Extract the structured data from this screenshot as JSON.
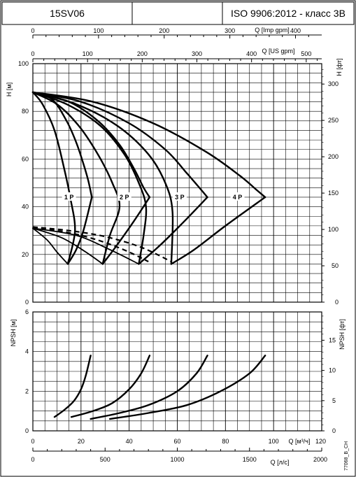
{
  "header": {
    "model": "15SV06",
    "blank": "",
    "standard": "ISO 9906:2012 - класс 3B"
  },
  "side_code": "77068_B_CH",
  "chart_data": [
    {
      "type": "line",
      "name": "head",
      "x_units": "Q [м³/ч]",
      "xlim": [
        0,
        120
      ],
      "ylabel_left": "H [м]",
      "ylim": [
        0,
        100
      ],
      "yticks_left": [
        0,
        20,
        40,
        60,
        80,
        100
      ],
      "ylabel_right": "H [фт]",
      "yticks_right": [
        0,
        50,
        100,
        150,
        200,
        250,
        300
      ],
      "top_axis_imp": {
        "label": "Q [Imp gpm]",
        "ticks": [
          0,
          100,
          200,
          300,
          400
        ]
      },
      "top_axis_us": {
        "label": "Q [US gpm]",
        "ticks": [
          0,
          100,
          200,
          300,
          400,
          500
        ]
      },
      "grid": true,
      "series": [
        {
          "name": "1 P",
          "label_at": [
            15,
            44
          ],
          "head": [
            [
              0,
              88
            ],
            [
              8,
              85
            ],
            [
              14,
              76
            ],
            [
              18,
              67
            ],
            [
              21,
              58
            ],
            [
              23,
              51
            ],
            [
              24.5,
              44
            ]
          ],
          "left_boundary": [
            [
              0,
              88
            ],
            [
              4,
              83
            ],
            [
              9,
              72
            ],
            [
              13,
              56
            ],
            [
              15.5,
              44
            ],
            [
              17.5,
              30
            ],
            [
              14.5,
              16
            ]
          ],
          "right_boundary": [
            [
              14.5,
              16
            ],
            [
              18,
              22
            ],
            [
              21,
              30
            ],
            [
              24.5,
              44
            ]
          ],
          "npsh": [
            [
              9,
              0.7
            ],
            [
              13,
              1.05
            ],
            [
              17,
              1.5
            ],
            [
              20,
              2.1
            ],
            [
              22,
              2.8
            ],
            [
              24,
              3.8
            ]
          ]
        },
        {
          "name": "2 P",
          "label_at": [
            38,
            44
          ],
          "head": [
            [
              0,
              88
            ],
            [
              15,
              84
            ],
            [
              27,
              76
            ],
            [
              36,
              66
            ],
            [
              42,
              56
            ],
            [
              46,
              48
            ],
            [
              48.5,
              44
            ]
          ],
          "left_boundary": [
            [
              0,
              88
            ],
            [
              10,
              83
            ],
            [
              19,
              74
            ],
            [
              27,
              62
            ],
            [
              33,
              50
            ],
            [
              36,
              40
            ],
            [
              32,
              28
            ],
            [
              29,
              16
            ]
          ],
          "right_boundary": [
            [
              29,
              16
            ],
            [
              35,
              24
            ],
            [
              42,
              34
            ],
            [
              48.5,
              44
            ]
          ],
          "npsh": [
            [
              16,
              0.7
            ],
            [
              25,
              1.0
            ],
            [
              33,
              1.4
            ],
            [
              40,
              2.1
            ],
            [
              45,
              2.9
            ],
            [
              48.5,
              3.8
            ]
          ]
        },
        {
          "name": "3 P",
          "label_at": [
            61,
            44
          ],
          "head": [
            [
              0,
              88
            ],
            [
              20,
              84
            ],
            [
              40,
              75
            ],
            [
              55,
              64
            ],
            [
              64,
              54
            ],
            [
              70,
              47
            ],
            [
              72.5,
              44
            ]
          ],
          "left_boundary": [
            [
              0,
              88
            ],
            [
              14,
              83
            ],
            [
              28,
              74
            ],
            [
              38,
              62
            ],
            [
              44,
              50
            ],
            [
              47,
              40
            ],
            [
              46,
              28
            ],
            [
              44,
              16
            ]
          ],
          "right_boundary": [
            [
              44,
              16
            ],
            [
              53,
              24
            ],
            [
              63,
              34
            ],
            [
              72.5,
              44
            ]
          ],
          "npsh": [
            [
              24,
              0.6
            ],
            [
              36,
              0.9
            ],
            [
              48,
              1.3
            ],
            [
              60,
              2.0
            ],
            [
              68,
              2.9
            ],
            [
              72.5,
              3.8
            ]
          ]
        },
        {
          "name": "4 P",
          "label_at": [
            85,
            44
          ],
          "head": [
            [
              0,
              88
            ],
            [
              25,
              84
            ],
            [
              50,
              75
            ],
            [
              72,
              63
            ],
            [
              86,
              53
            ],
            [
              93,
              47
            ],
            [
              96.5,
              44
            ]
          ],
          "left_boundary": [
            [
              0,
              88
            ],
            [
              18,
              83
            ],
            [
              35,
              74
            ],
            [
              48,
              62
            ],
            [
              55,
              50
            ],
            [
              58,
              38
            ],
            [
              57.5,
              16
            ]
          ],
          "right_boundary": [
            [
              57.5,
              16
            ],
            [
              67,
              22
            ],
            [
              80,
              32
            ],
            [
              96.5,
              44
            ]
          ],
          "npsh": [
            [
              32,
              0.6
            ],
            [
              48,
              0.9
            ],
            [
              64,
              1.3
            ],
            [
              78,
              2.0
            ],
            [
              90,
              2.9
            ],
            [
              96.5,
              3.8
            ]
          ]
        }
      ],
      "dashed_lines": [
        [
          [
            0,
            31.5
          ],
          [
            15,
            30
          ],
          [
            30,
            27.5
          ],
          [
            45,
            23
          ],
          [
            57.5,
            17
          ]
        ],
        [
          [
            0,
            31.5
          ],
          [
            10,
            30
          ],
          [
            20,
            28
          ],
          [
            30,
            25
          ],
          [
            40,
            21
          ],
          [
            48,
            17
          ]
        ]
      ],
      "low_flow_curves": [
        [
          [
            0,
            31
          ],
          [
            6,
            26
          ],
          [
            10,
            21
          ],
          [
            14.5,
            16
          ]
        ],
        [
          [
            0,
            31
          ],
          [
            12,
            27
          ],
          [
            22,
            21
          ],
          [
            29,
            16
          ]
        ],
        [
          [
            0,
            31
          ],
          [
            18,
            28
          ],
          [
            32,
            22
          ],
          [
            44,
            16
          ]
        ]
      ]
    },
    {
      "type": "line",
      "name": "npsh",
      "ylabel_left": "NPSH [м]",
      "ylim": [
        0,
        6
      ],
      "yticks_left": [
        0,
        2,
        4,
        6
      ],
      "ylabel_right": "NPSH [фт]",
      "yticks_right": [
        0,
        5,
        10,
        15
      ],
      "bottom_axis_m3h": {
        "label": "Q [м³/ч]",
        "ticks": [
          0,
          20,
          40,
          60,
          80,
          100,
          120
        ]
      },
      "bottom_axis_ls": {
        "label": "Q [л/с]",
        "ticks": [
          0,
          500,
          1000,
          1500,
          2000
        ]
      },
      "grid": true
    }
  ]
}
